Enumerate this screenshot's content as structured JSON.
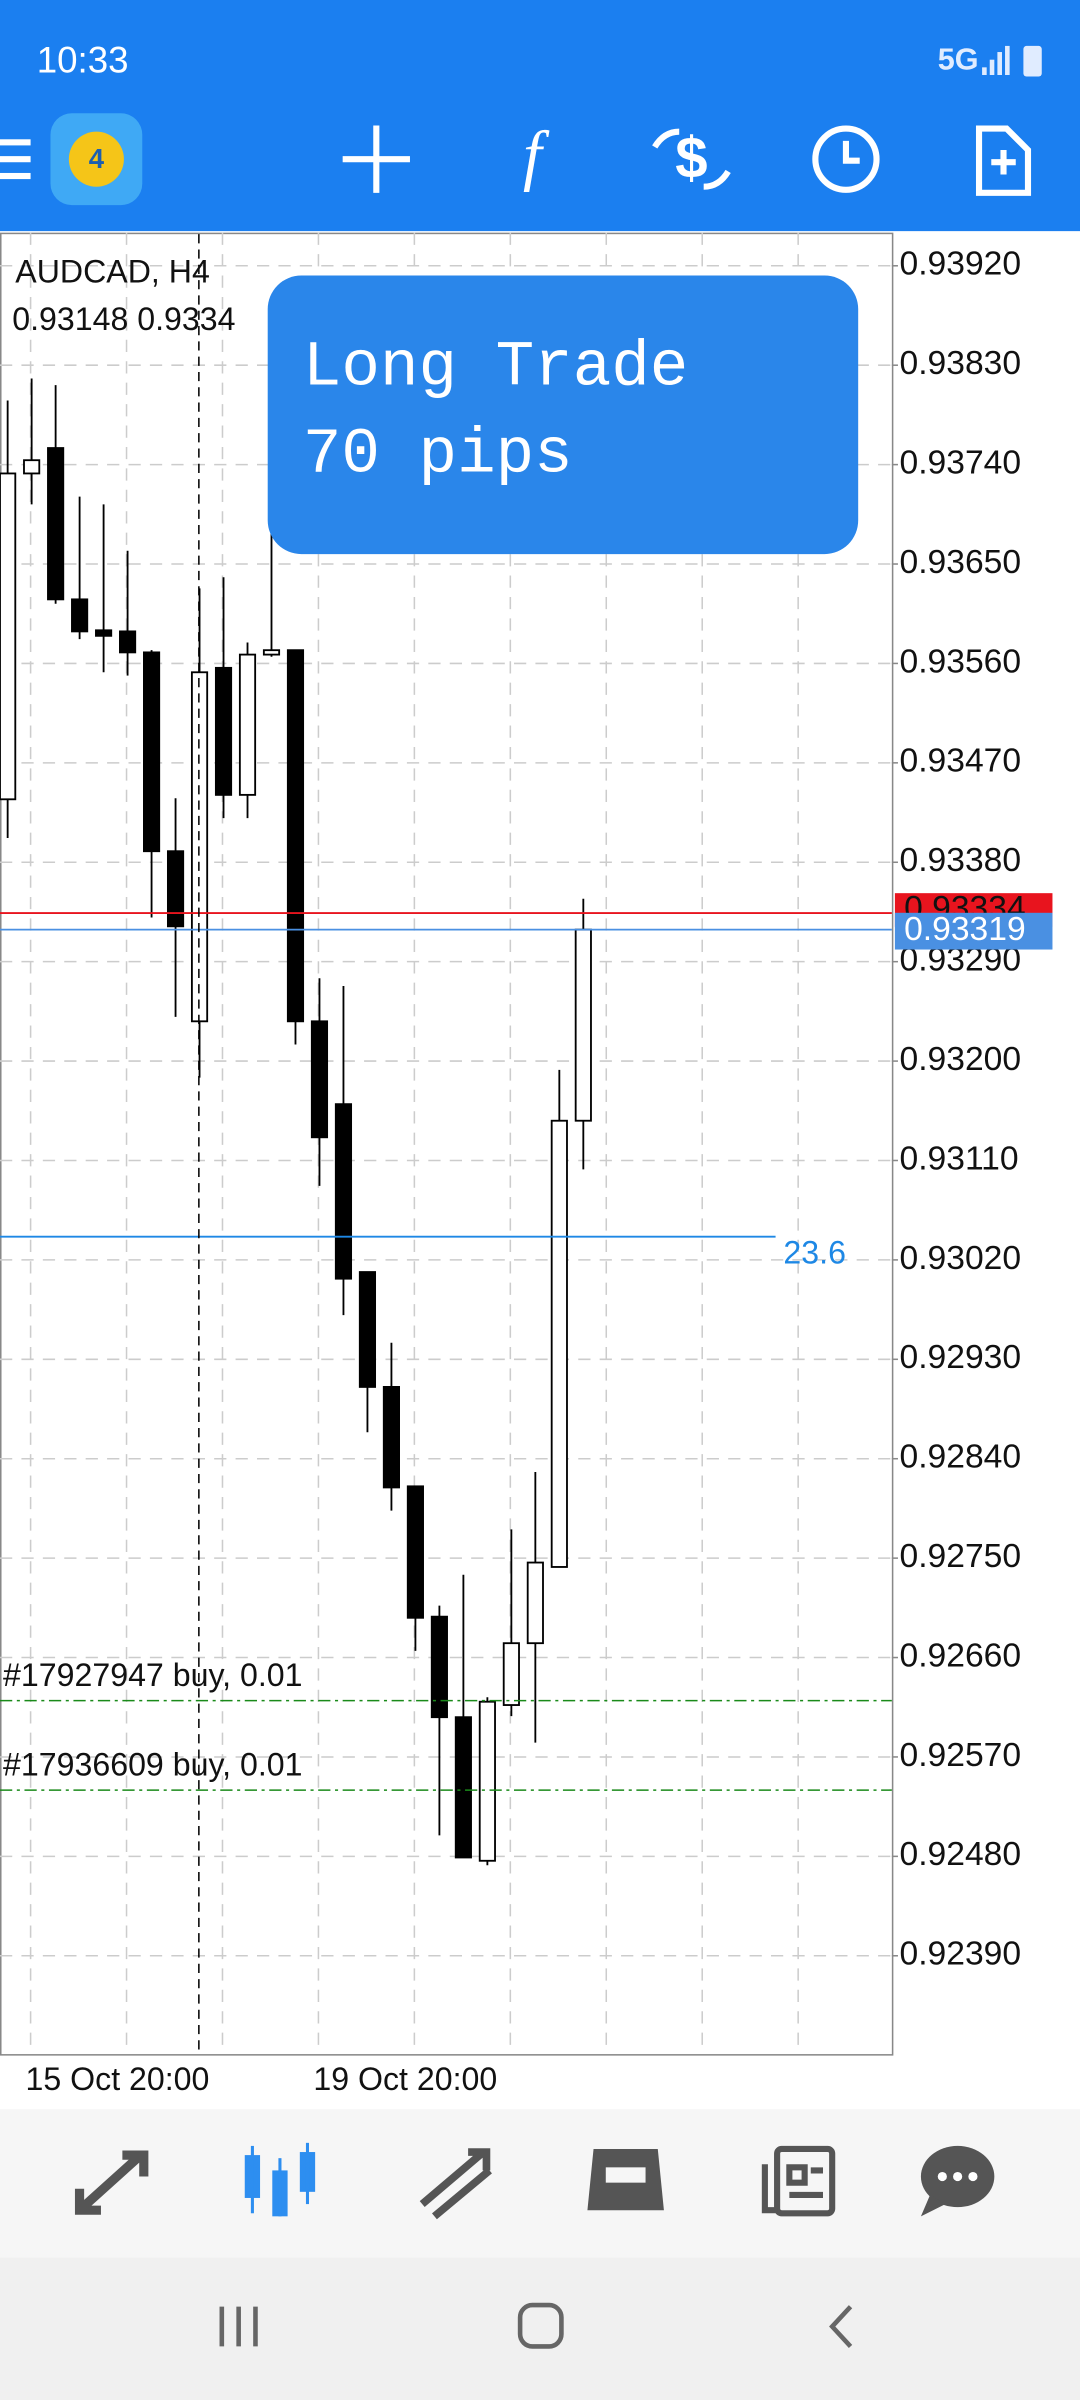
{
  "status_bar": {
    "time": "10:33",
    "network": "5G"
  },
  "chart_data": {
    "type": "candlestick",
    "symbol": "AUDCAD, H4",
    "quote": "0.93148 0.9334",
    "annotation": [
      "Long Trade",
      "70 pips"
    ],
    "categories": [
      null,
      "15 Oct 20:00",
      null,
      null,
      null,
      null,
      null,
      null,
      null,
      null,
      null,
      null,
      null,
      "19 Oct 20:00",
      null,
      null,
      null,
      null,
      null,
      null,
      null,
      null,
      null,
      null,
      null
    ],
    "open": [
      0.93437,
      0.93732,
      0.93755,
      0.93618,
      0.9359,
      0.93589,
      0.9357,
      0.9339,
      0.93236,
      0.93556,
      0.93441,
      0.93568,
      0.93572,
      0.93236,
      0.93161,
      0.93009,
      0.92905,
      0.92815,
      0.92697,
      0.92606,
      0.92476,
      0.92617,
      0.92673,
      0.92742,
      0.93146
    ],
    "high": [
      0.93798,
      0.93818,
      0.93812,
      0.93711,
      0.93704,
      0.93662,
      0.93572,
      0.93438,
      0.93628,
      0.93638,
      0.93579,
      0.9369,
      0.93572,
      0.93275,
      0.93268,
      0.93009,
      0.92945,
      0.92815,
      0.92707,
      0.92735,
      0.92624,
      0.92776,
      0.92828,
      0.93192,
      0.93347
    ],
    "low": [
      0.93402,
      0.93704,
      0.93614,
      0.93582,
      0.93552,
      0.93549,
      0.9333,
      0.9324,
      0.93185,
      0.9342,
      0.9342,
      0.93566,
      0.93215,
      0.93087,
      0.9297,
      0.92864,
      0.92793,
      0.92666,
      0.92499,
      0.92479,
      0.92472,
      0.92607,
      0.92583,
      0.92742,
      0.93102
    ],
    "close": [
      0.93732,
      0.93744,
      0.93618,
      0.93589,
      0.93585,
      0.9357,
      0.9339,
      0.93322,
      0.93552,
      0.93441,
      0.93568,
      0.93572,
      0.93236,
      0.93131,
      0.93003,
      0.92905,
      0.92814,
      0.92696,
      0.92606,
      0.92479,
      0.9262,
      0.92673,
      0.92746,
      0.93146,
      0.93319
    ],
    "up_color": "#ffffff",
    "down_color": "#000000",
    "ylim": [
      0.92301,
      0.9395
    ],
    "yticks": [
      {
        "value": 0.9392,
        "label": "0.93920"
      },
      {
        "value": 0.9383,
        "label": "0.93830"
      },
      {
        "value": 0.9374,
        "label": "0.93740"
      },
      {
        "value": 0.9365,
        "label": "0.93650"
      },
      {
        "value": 0.9356,
        "label": "0.93560"
      },
      {
        "value": 0.9347,
        "label": "0.93470"
      },
      {
        "value": 0.9338,
        "label": "0.93380"
      },
      {
        "value": 0.9329,
        "label": "0.93290"
      },
      {
        "value": 0.932,
        "label": "0.93200"
      },
      {
        "value": 0.9311,
        "label": "0.93110"
      },
      {
        "value": 0.9302,
        "label": "0.93020"
      },
      {
        "value": 0.9293,
        "label": "0.92930"
      },
      {
        "value": 0.9284,
        "label": "0.92840"
      },
      {
        "value": 0.9275,
        "label": "0.92750"
      },
      {
        "value": 0.9266,
        "label": "0.92660"
      },
      {
        "value": 0.9257,
        "label": "0.92570"
      },
      {
        "value": 0.9248,
        "label": "0.92480"
      },
      {
        "value": 0.9239,
        "label": "0.92390"
      }
    ],
    "grid": true,
    "ask_line": {
      "value": 0.93334,
      "color": "#e8141e"
    },
    "bid_line": {
      "value": 0.93319,
      "color": "#4a90e2"
    },
    "fib_line": {
      "value": 0.93041,
      "label": "23.6",
      "color": "#1e88e5"
    },
    "order_lines": [
      {
        "value": 0.92621,
        "label": "#17927947 buy, 0.01"
      },
      {
        "value": 0.9254,
        "label": "#17936609 buy, 0.01"
      }
    ],
    "order_color": "#1a8a1a"
  }
}
